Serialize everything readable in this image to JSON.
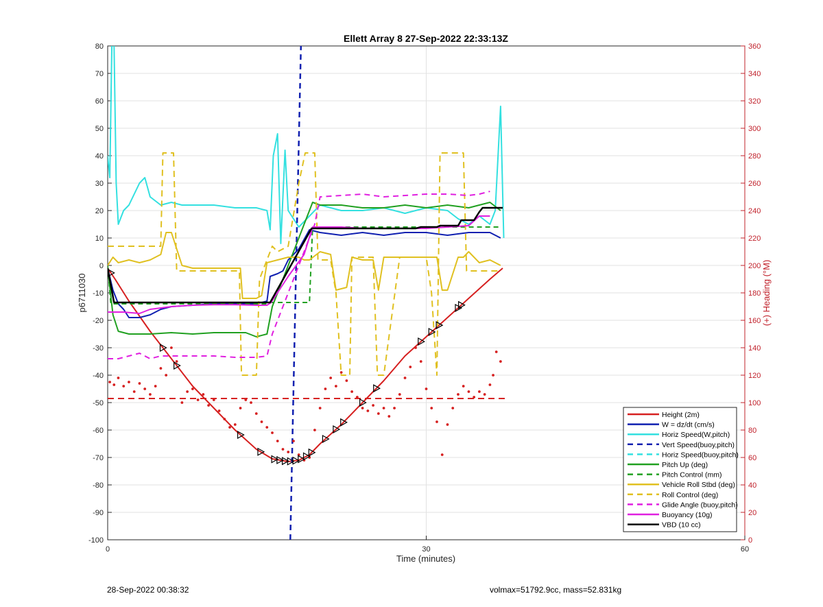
{
  "chart_data": {
    "type": "line",
    "title": "Ellett Array 8 27-Sep-2022 22:33:13Z",
    "xlabel": "Time (minutes)",
    "ylabel": "p6711030",
    "y2label": "(+) Heading (°M)",
    "xlim": [
      0,
      60
    ],
    "ylim": [
      -100,
      80
    ],
    "y2lim": [
      0,
      360
    ],
    "xticks": [
      "0",
      "30",
      "60"
    ],
    "yticks": [
      "80",
      "70",
      "60",
      "50",
      "40",
      "30",
      "20",
      "10",
      "0",
      "-10",
      "-20",
      "-30",
      "-40",
      "-50",
      "-60",
      "-70",
      "-80",
      "-90",
      "-100"
    ],
    "y2ticks": [
      "360",
      "340",
      "320",
      "300",
      "280",
      "260",
      "240",
      "220",
      "200",
      "180",
      "160",
      "140",
      "120",
      "100",
      "80",
      "60",
      "40",
      "20",
      "0"
    ],
    "grid": true,
    "legend_position": "bottom-right",
    "legend": [
      {
        "label": "Height (2m)",
        "color": "#d62020",
        "style": "solid"
      },
      {
        "label": "W = dz/dt (cm/s)",
        "color": "#1020b0",
        "style": "solid"
      },
      {
        "label": "Horiz Speed(W,pitch)",
        "color": "#33e0e0",
        "style": "solid"
      },
      {
        "label": "Vert Speed(buoy,pitch)",
        "color": "#1020b0",
        "style": "dashed"
      },
      {
        "label": "Horiz Speed(buoy,pitch)",
        "color": "#33e0e0",
        "style": "dashed"
      },
      {
        "label": "Pitch Up (deg)",
        "color": "#20a020",
        "style": "solid"
      },
      {
        "label": "Pitch Control (mm)",
        "color": "#20a020",
        "style": "dashed"
      },
      {
        "label": "Vehicle Roll Stbd (deg)",
        "color": "#e0c020",
        "style": "solid"
      },
      {
        "label": "Roll Control (deg)",
        "color": "#e0c020",
        "style": "dashed"
      },
      {
        "label": "Glide Angle (buoy,pitch)",
        "color": "#e020e0",
        "style": "dashed"
      },
      {
        "label": "Buoyancy (10g)",
        "color": "#e020e0",
        "style": "solid"
      },
      {
        "label": "VBD (10 cc)",
        "color": "#000000",
        "style": "solid"
      }
    ],
    "series": [
      {
        "name": "Height (2m)",
        "color": "#d62020",
        "dash": "",
        "width": 2,
        "x": [
          0,
          0.7,
          2,
          4,
          6,
          8,
          10,
          12,
          14,
          15.5,
          17,
          18,
          19,
          20,
          22,
          24,
          26,
          28,
          30,
          32,
          34,
          36,
          37.2
        ],
        "y": [
          -1,
          -5,
          -13,
          -24,
          -34,
          -44,
          -52,
          -60,
          -67,
          -70.5,
          -71.5,
          -71,
          -69,
          -65,
          -58,
          -50,
          -42,
          -33,
          -26,
          -19,
          -12,
          -5,
          -1
        ]
      },
      {
        "name": "W = dz/dt (cm/s)",
        "color": "#1020b0",
        "dash": "",
        "width": 2,
        "x": [
          0,
          0.5,
          1,
          1.5,
          2,
          3,
          4,
          5,
          6,
          8,
          10,
          12,
          13,
          14,
          15,
          15.3,
          16,
          16.5,
          17,
          18,
          19,
          20,
          22,
          24,
          26,
          28,
          30,
          32,
          34,
          36,
          37
        ],
        "y": [
          -1,
          -9,
          -14,
          -16,
          -19,
          -19,
          -18,
          -16,
          -15,
          -14.5,
          -14,
          -14,
          -14,
          -14,
          -13,
          -4,
          -3,
          -2,
          2,
          6,
          13,
          12,
          11,
          12,
          11,
          12,
          12,
          11,
          12,
          12,
          10
        ]
      },
      {
        "name": "Horiz Speed(W,pitch)",
        "color": "#33e0e0",
        "dash": "",
        "width": 2,
        "x": [
          0,
          0.2,
          0.4,
          0.6,
          0.8,
          1,
          1.5,
          2,
          3,
          3.5,
          4,
          5,
          6,
          7,
          8,
          10,
          12,
          14,
          15,
          15.3,
          15.6,
          16,
          16.3,
          16.7,
          17,
          18,
          19,
          20,
          22,
          24,
          26,
          28,
          30,
          32,
          33,
          34,
          35,
          36,
          36.5,
          37,
          37.3
        ],
        "y": [
          40,
          32,
          82,
          80,
          30,
          15,
          20,
          22,
          30,
          32,
          25,
          22,
          23,
          22,
          22,
          22,
          21,
          21,
          20,
          13,
          40,
          48,
          8,
          42,
          20,
          14,
          18,
          22,
          20,
          20,
          21,
          19,
          21,
          20,
          17,
          15,
          18,
          15,
          20,
          58,
          10
        ]
      },
      {
        "name": "Vert Speed(buoy,pitch)",
        "color": "#1020b0",
        "dash": "8,6",
        "width": 2.5,
        "x": [
          17.2,
          17.8,
          18.2
        ],
        "y": [
          -100,
          10,
          80
        ]
      },
      {
        "name": "Pitch Up (deg)",
        "color": "#20a020",
        "dash": "",
        "width": 2,
        "x": [
          0,
          0.5,
          1,
          2,
          4,
          6,
          8,
          10,
          12,
          13,
          14,
          15,
          15.5,
          16.5,
          17.5,
          18.5,
          19,
          19.3,
          20,
          22,
          24,
          26,
          28,
          30,
          32,
          34,
          35,
          36,
          37
        ],
        "y": [
          -1,
          -18,
          -24,
          -25,
          -25,
          -24.5,
          -25,
          -24.5,
          -24.5,
          -24.5,
          -26,
          -25,
          -15,
          -5,
          5,
          15,
          20,
          23,
          22,
          22,
          21,
          21,
          22,
          21,
          22,
          21,
          22,
          23,
          20
        ]
      },
      {
        "name": "Pitch Control (mm)",
        "color": "#20a020",
        "dash": "7,5",
        "width": 2,
        "x": [
          0,
          0.3,
          0.8,
          15,
          15.4,
          19,
          19.3,
          36,
          37
        ],
        "y": [
          0,
          -14,
          -14,
          -14,
          -13.5,
          -13.5,
          14,
          14,
          14
        ]
      },
      {
        "name": "Vehicle Roll Stbd (deg)",
        "color": "#e0c020",
        "dash": "",
        "width": 2,
        "x": [
          0,
          0.5,
          1,
          2,
          3,
          4,
          5,
          5.5,
          6,
          7,
          8,
          10,
          12,
          12.5,
          12.7,
          14,
          14.5,
          15,
          16,
          17,
          18,
          18.5,
          19,
          20,
          21,
          21.5,
          22.5,
          23,
          24,
          25,
          25.5,
          26,
          27,
          28,
          29,
          30,
          31,
          31.5,
          32,
          33,
          33.5,
          34,
          35,
          36,
          37
        ],
        "y": [
          0,
          3,
          1,
          2,
          1,
          2,
          4,
          12,
          12,
          0,
          -1,
          -1,
          -1,
          -1,
          -12,
          -12,
          -11,
          1,
          2,
          3,
          3,
          2,
          2,
          5,
          4,
          -9,
          -8,
          3,
          2,
          2,
          -9,
          3,
          3,
          3,
          3,
          3,
          3,
          -9,
          -9,
          3,
          3,
          5,
          1,
          2,
          0
        ]
      },
      {
        "name": "Roll Control (deg)",
        "color": "#e0c020",
        "dash": "9,6",
        "width": 2,
        "x": [
          0,
          2,
          4,
          5,
          5.2,
          6.2,
          6.5,
          12.4,
          12.6,
          14,
          14.3,
          15.5,
          16,
          17,
          18,
          18.6,
          19.5,
          19.8,
          21,
          21.5,
          22,
          22.8,
          23,
          25,
          25.4,
          26,
          27.5,
          28,
          29,
          30,
          30.5,
          31,
          31.3,
          32,
          33.5,
          33.8,
          35,
          36,
          37
        ],
        "y": [
          7,
          7,
          7,
          7,
          41,
          41,
          -2,
          -2,
          -40,
          -40,
          -5,
          7,
          5,
          7,
          30,
          41,
          41,
          2,
          2,
          -10,
          -40,
          -40,
          3,
          3,
          -40,
          -40,
          3,
          3,
          3,
          3,
          -10,
          -40,
          41,
          41,
          41,
          -2,
          -2,
          -2,
          -2
        ]
      },
      {
        "name": "Glide Angle (buoy,pitch)",
        "color": "#e020e0",
        "dash": "8,6",
        "width": 2,
        "x": [
          0,
          1,
          2,
          3,
          4,
          5,
          6,
          8,
          10,
          12,
          14,
          15,
          15.5,
          16.5,
          17.5,
          18.5,
          19.5,
          20,
          22,
          24,
          26,
          28,
          30,
          32,
          34,
          35,
          36
        ],
        "y": [
          -34,
          -34,
          -33,
          -32,
          -34,
          -33,
          -33,
          -33,
          -33,
          -33.5,
          -33.5,
          -33,
          -25,
          -15,
          -5,
          5,
          15,
          25,
          25.5,
          26,
          25,
          25.5,
          26,
          26,
          25.5,
          26,
          27
        ]
      },
      {
        "name": "Buoyancy (10g)",
        "color": "#e020e0",
        "dash": "",
        "width": 2,
        "x": [
          0,
          1.5,
          3,
          4,
          5,
          6,
          8,
          10,
          12,
          14,
          15,
          15.4,
          17,
          18.5,
          19.3,
          20,
          22,
          24,
          26,
          28,
          30,
          32,
          34,
          35,
          36
        ],
        "y": [
          -17,
          -17,
          -17.5,
          -16,
          -15.5,
          -15,
          -14.5,
          -14.3,
          -14.3,
          -14.5,
          -14.5,
          -13.5,
          -4,
          4,
          14,
          14,
          14,
          13.5,
          13.5,
          13.5,
          13.5,
          14,
          14.5,
          18,
          18
        ]
      },
      {
        "name": "VBD (10 cc)",
        "color": "#000000",
        "dash": "",
        "width": 2.5,
        "x": [
          0,
          0.6,
          1,
          2,
          14,
          15.3,
          19.2,
          20,
          29,
          29.5,
          31,
          31.3,
          33,
          33.3,
          34.5,
          35,
          35.3,
          37.2
        ],
        "y": [
          -1,
          -13.5,
          -13.5,
          -13.5,
          -13.5,
          -13.5,
          13.5,
          13.5,
          13.5,
          14,
          14,
          14.5,
          14.5,
          16.5,
          16.5,
          19.5,
          21,
          21
        ]
      }
    ],
    "heading_series": {
      "name": "(+) Heading",
      "color": "#d62020",
      "reference": 103,
      "x": [
        0.2,
        0.6,
        1,
        1.5,
        2,
        2.5,
        3,
        3.5,
        4,
        4.5,
        5,
        5.5,
        6,
        6.5,
        7,
        7.5,
        8,
        8.5,
        9,
        9.5,
        10,
        10.5,
        11,
        11.5,
        12,
        12.5,
        13,
        13.5,
        14,
        14.5,
        15,
        15.5,
        16,
        16.5,
        17,
        17.5,
        18,
        18.5,
        19,
        19.5,
        20,
        20.5,
        21,
        21.5,
        22,
        22.5,
        23,
        23.5,
        24,
        24.5,
        25,
        25.5,
        26,
        26.5,
        27,
        27.5,
        28,
        28.5,
        29,
        29.5,
        30,
        30.5,
        31,
        31.5,
        32,
        32.5,
        33,
        33.5,
        34,
        34.5,
        35,
        35.5,
        36,
        36.3,
        36.6,
        37
      ],
      "y": [
        115,
        113,
        118,
        112,
        115,
        108,
        114,
        110,
        106,
        112,
        125,
        120,
        140,
        130,
        100,
        108,
        110,
        102,
        106,
        98,
        102,
        94,
        88,
        82,
        84,
        96,
        102,
        100,
        92,
        86,
        82,
        78,
        72,
        66,
        64,
        72,
        62,
        58,
        60,
        80,
        96,
        110,
        118,
        112,
        122,
        116,
        108,
        104,
        96,
        94,
        98,
        92,
        96,
        90,
        96,
        106,
        118,
        126,
        140,
        130,
        110,
        96,
        86,
        62,
        84,
        96,
        106,
        112,
        108,
        104,
        108,
        106,
        113,
        120,
        137,
        130
      ]
    }
  },
  "footer": {
    "timestamp": "28-Sep-2022 00:38:32",
    "summary": "volmax=51792.9cc, mass=52.831kg"
  }
}
